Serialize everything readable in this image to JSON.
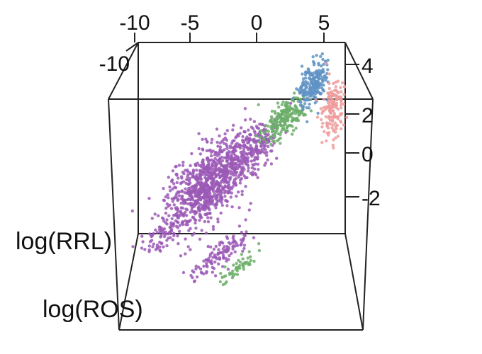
{
  "chart_data": {
    "type": "scatter",
    "projection": "3d",
    "title": "",
    "axes": {
      "x": {
        "label": "",
        "ticks": [
          "-10",
          "-5",
          "0",
          "5"
        ],
        "range": [
          -11,
          7
        ]
      },
      "y": {
        "label": "log(RRL)",
        "ticks": [
          "-10"
        ],
        "range": [
          -11,
          7
        ]
      },
      "z": {
        "label": "log(ROS)",
        "ticks": [
          "4",
          "2",
          "0",
          "-2"
        ],
        "range": [
          -4,
          5
        ]
      }
    },
    "grid": false,
    "legend": "none",
    "series": [
      {
        "color": "#9b59b6",
        "clusters": [
          {
            "cx": -4.5,
            "cz": -0.3,
            "sx": 2.6,
            "sz": 1.2,
            "n": 900
          },
          {
            "cx": -8.0,
            "cz": -2.2,
            "sx": 1.0,
            "sz": 0.5,
            "n": 60
          },
          {
            "cx": -1.0,
            "cz": 1.0,
            "sx": 1.8,
            "sz": 0.8,
            "n": 240
          },
          {
            "cx": -3.5,
            "cz": -3.0,
            "sx": 2.0,
            "sz": 0.4,
            "n": 120
          }
        ]
      },
      {
        "color": "#6cae6a",
        "clusters": [
          {
            "cx": 1.5,
            "cz": 2.3,
            "sx": 1.3,
            "sz": 0.6,
            "n": 220
          },
          {
            "cx": -2.0,
            "cz": -3.5,
            "sx": 1.2,
            "sz": 0.3,
            "n": 50
          }
        ]
      },
      {
        "color": "#5f93c4",
        "clusters": [
          {
            "cx": 3.8,
            "cz": 3.7,
            "sx": 0.9,
            "sz": 0.7,
            "n": 220
          }
        ]
      },
      {
        "color": "#ef9b9b",
        "clusters": [
          {
            "cx": 5.3,
            "cz": 2.7,
            "sx": 0.6,
            "sz": 1.0,
            "n": 150
          }
        ]
      }
    ]
  }
}
